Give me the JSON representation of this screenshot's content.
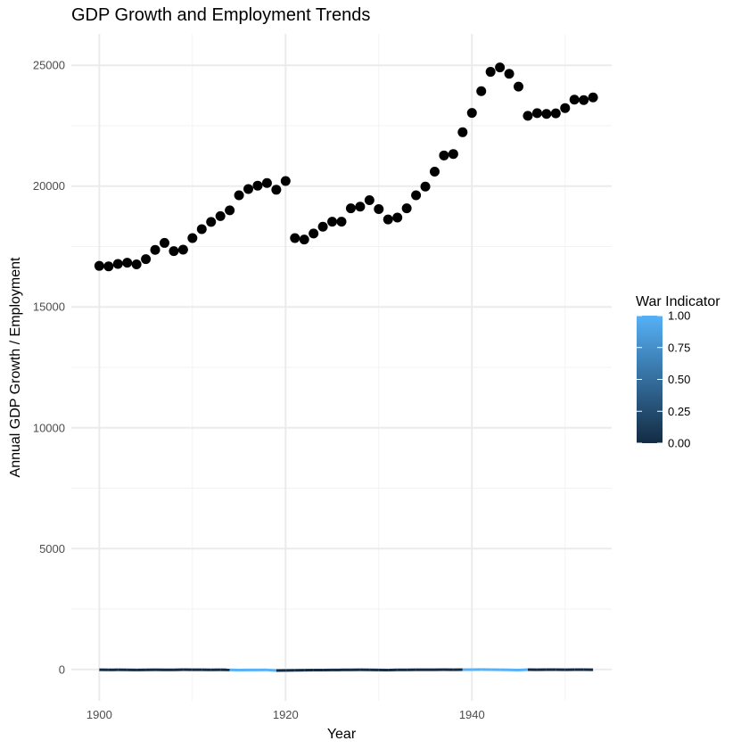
{
  "chart_data": {
    "type": "scatter",
    "title": "GDP Growth and Employment Trends",
    "xlabel": "Year",
    "ylabel": "Annual GDP Growth / Employment",
    "xlim": [
      1897,
      1955
    ],
    "ylim": [
      -1300,
      26300
    ],
    "x_ticks": [
      1900,
      1920,
      1940
    ],
    "x_tick_labels": [
      "1900",
      "1920",
      "1940"
    ],
    "x_minor_ticks": [
      1910,
      1930,
      1950
    ],
    "y_ticks": [
      0,
      5000,
      10000,
      15000,
      20000,
      25000
    ],
    "y_tick_labels": [
      "0",
      "5000",
      "10000",
      "15000",
      "20000",
      "25000"
    ],
    "y_minor_ticks": [
      2500,
      7500,
      12500,
      17500,
      22500
    ],
    "grid": true,
    "series": [
      {
        "mark": "point",
        "color": "#000000",
        "x": [
          1900,
          1901,
          1902,
          1903,
          1904,
          1905,
          1906,
          1907,
          1908,
          1909,
          1910,
          1911,
          1912,
          1913,
          1914,
          1915,
          1916,
          1917,
          1918,
          1919,
          1920,
          1921,
          1922,
          1923,
          1924,
          1925,
          1926,
          1927,
          1928,
          1929,
          1930,
          1931,
          1932,
          1933,
          1934,
          1935,
          1936,
          1937,
          1938,
          1939,
          1940,
          1941,
          1942,
          1943,
          1944,
          1945,
          1946,
          1947,
          1948,
          1949,
          1950,
          1951,
          1952,
          1953
        ],
        "y": [
          16700,
          16680,
          16780,
          16830,
          16760,
          16980,
          17360,
          17650,
          17310,
          17370,
          17850,
          18220,
          18520,
          18760,
          19000,
          19620,
          19880,
          20020,
          20130,
          19850,
          20210,
          17850,
          17790,
          18040,
          18320,
          18530,
          18530,
          19080,
          19150,
          19420,
          19050,
          18620,
          18700,
          19080,
          19620,
          19980,
          20600,
          21270,
          21330,
          22230,
          23030,
          23930,
          24730,
          24910,
          24650,
          24120,
          22910,
          23020,
          22990,
          23010,
          23230,
          23580,
          23560,
          23670
        ]
      },
      {
        "mark": "line",
        "color_variable": "War Indicator",
        "x": [
          1900,
          1901,
          1902,
          1903,
          1904,
          1905,
          1906,
          1907,
          1908,
          1909,
          1910,
          1911,
          1912,
          1913,
          1914,
          1915,
          1916,
          1917,
          1918,
          1919,
          1920,
          1921,
          1922,
          1923,
          1924,
          1925,
          1926,
          1927,
          1928,
          1929,
          1930,
          1931,
          1932,
          1933,
          1934,
          1935,
          1936,
          1937,
          1938,
          1939,
          1940,
          1941,
          1942,
          1943,
          1944,
          1945,
          1946,
          1947,
          1948,
          1949,
          1950,
          1951,
          1952,
          1953
        ],
        "y": [
          -12,
          -18,
          -15,
          -20,
          -22,
          -16,
          -14,
          -20,
          -18,
          -10,
          -14,
          -12,
          -18,
          -15,
          -20,
          -25,
          -22,
          -24,
          -20,
          -45,
          -40,
          -38,
          -30,
          -28,
          -25,
          -22,
          -20,
          -18,
          -15,
          -20,
          -22,
          -25,
          -20,
          -18,
          -15,
          -14,
          -12,
          -10,
          -12,
          -10,
          -8,
          -6,
          -10,
          -15,
          -20,
          -25,
          -10,
          -12,
          -8,
          -10,
          -12,
          -8,
          -10,
          -12
        ],
        "war": [
          0,
          0,
          0,
          0,
          0,
          0,
          0,
          0,
          0,
          0,
          0,
          0,
          0,
          0,
          1,
          1,
          1,
          1,
          1,
          0,
          0,
          0,
          0,
          0,
          0,
          0,
          0,
          0,
          0,
          0,
          0,
          0,
          0,
          0,
          0,
          0,
          0,
          0,
          0,
          1,
          1,
          1,
          1,
          1,
          1,
          1,
          0,
          0,
          0,
          0,
          0,
          0,
          0,
          0
        ]
      }
    ],
    "legend": {
      "title": "War Indicator",
      "position": "right",
      "type": "colorbar",
      "low_color": "#132B43",
      "high_color": "#56B1F7",
      "breaks": [
        0,
        0.25,
        0.5,
        0.75,
        1
      ],
      "labels": [
        "0.00",
        "0.25",
        "0.50",
        "0.75",
        "1.00"
      ]
    },
    "colors": {
      "background": "#ffffff",
      "grid_major": "#ebebeb",
      "grid_minor": "#f3f3f3",
      "point": "#000000"
    }
  }
}
